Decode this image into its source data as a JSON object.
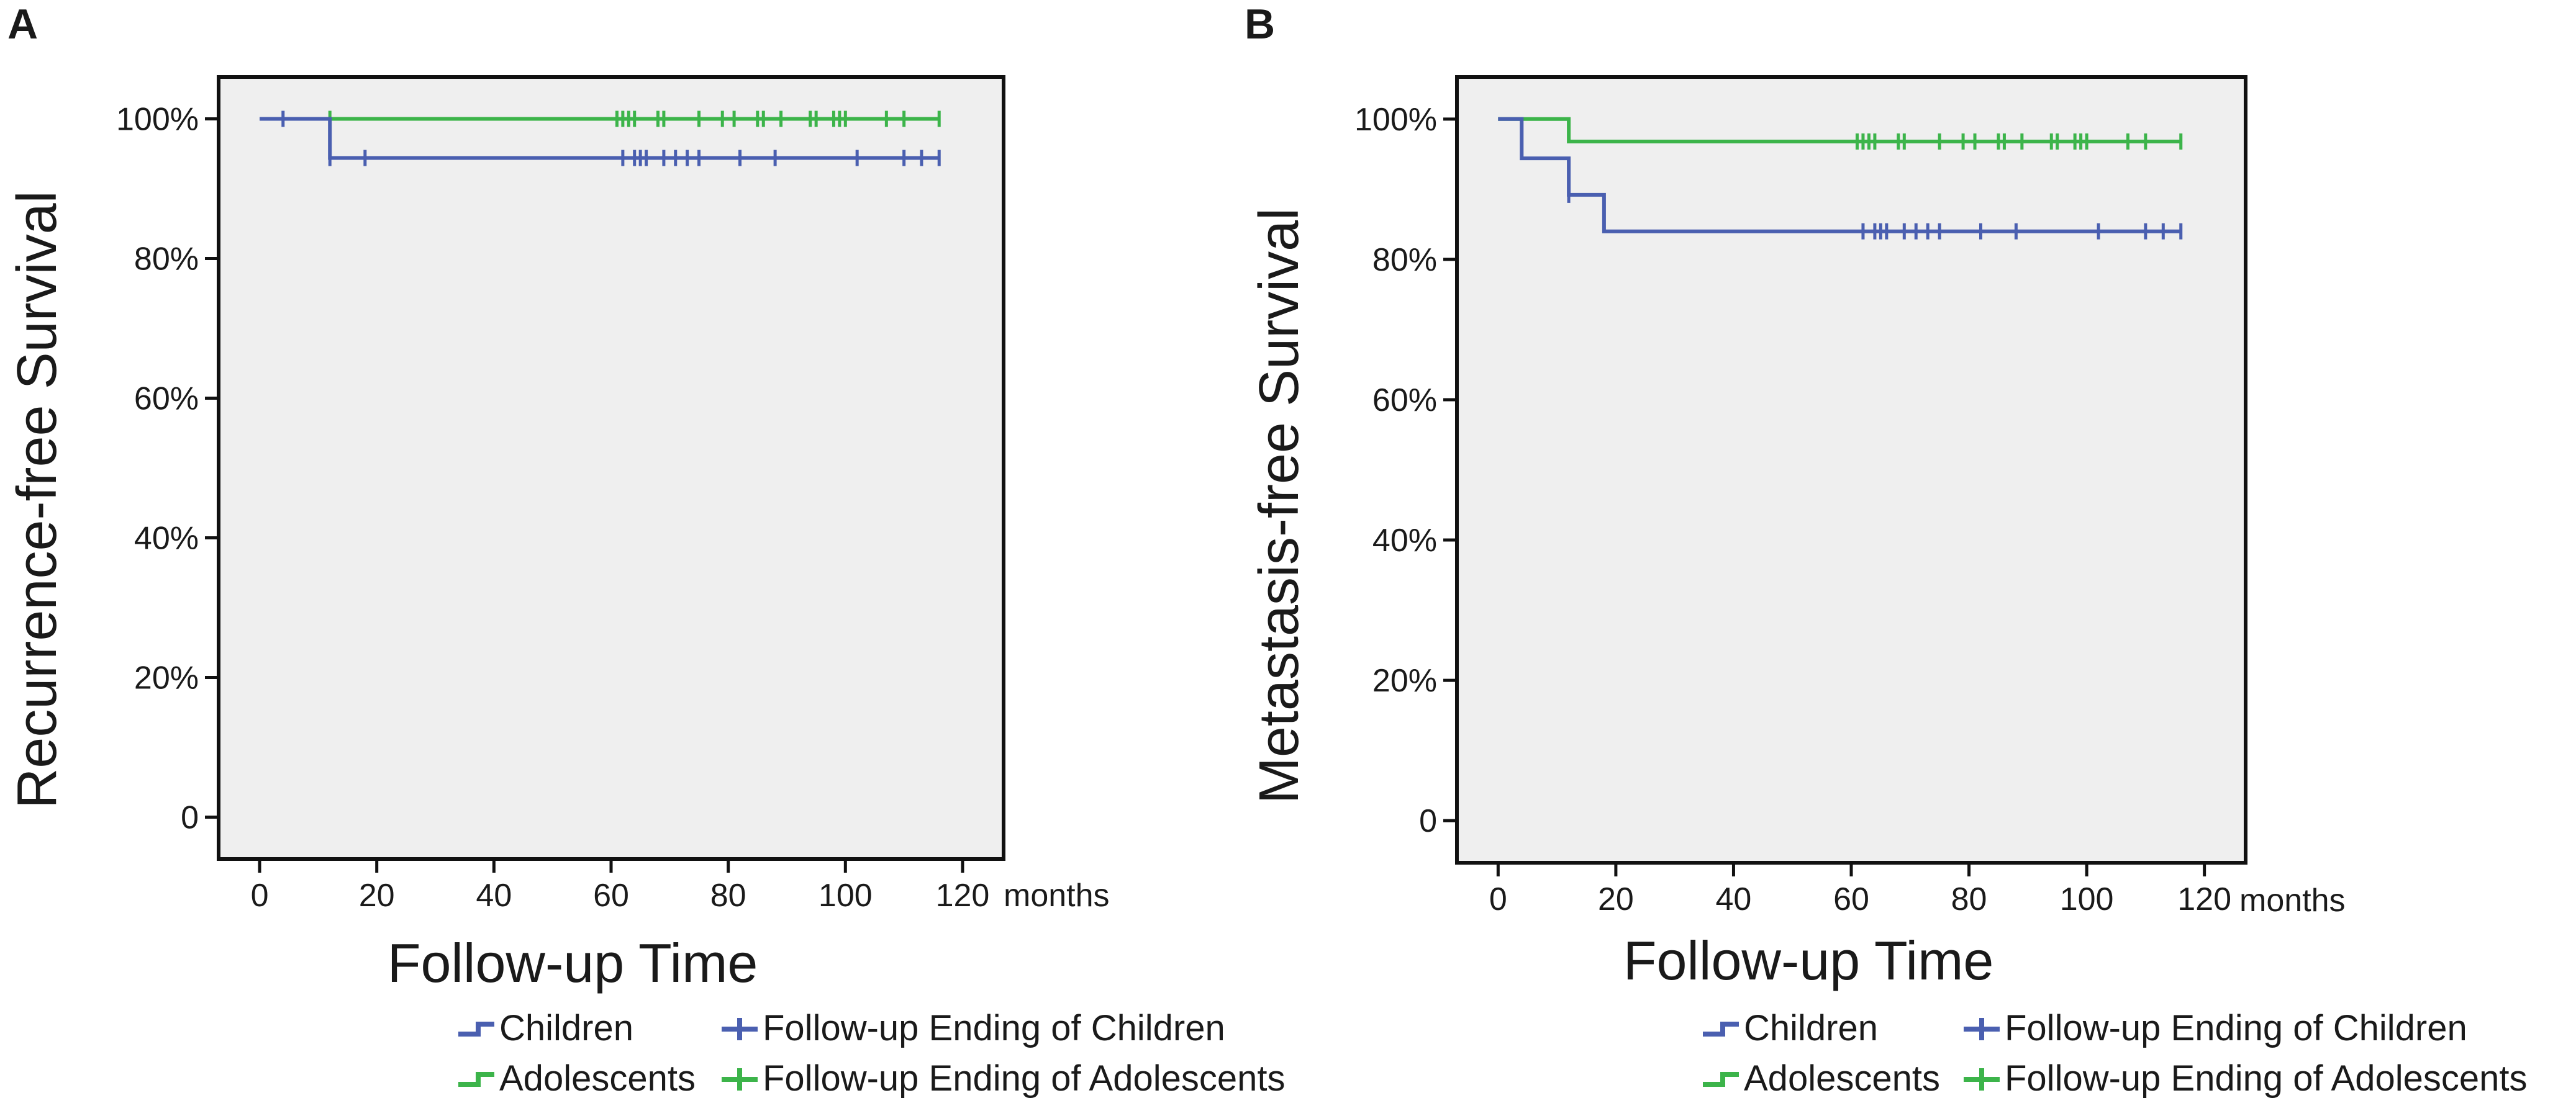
{
  "colors": {
    "children": "#4a5fb0",
    "adolescents": "#3cb44a",
    "plot_background": "#efefef",
    "axis": "#111111"
  },
  "chart_data": [
    {
      "panel": "A",
      "type": "line",
      "subtype": "kaplan-meier-step",
      "xlabel": "Follow-up Time",
      "x_unit_label": "months",
      "ylabel": "Recurrence-free Survival",
      "xlim": [
        -7,
        127
      ],
      "ylim": [
        -6,
        106
      ],
      "x_ticks": [
        0,
        20,
        40,
        60,
        80,
        100,
        120
      ],
      "y_ticks": [
        0,
        20,
        40,
        60,
        80,
        100
      ],
      "y_tick_labels": [
        "0",
        "20%",
        "40%",
        "60%",
        "80%",
        "100%"
      ],
      "grid": false,
      "series": [
        {
          "name": "Children",
          "color_key": "children",
          "steps": [
            [
              0,
              100
            ],
            [
              12,
              100
            ],
            [
              12,
              94.4
            ],
            [
              116,
              94.4
            ]
          ],
          "censored": [
            [
              4,
              100
            ],
            [
              12,
              94.4
            ],
            [
              18,
              94.4
            ],
            [
              62,
              94.4
            ],
            [
              64,
              94.4
            ],
            [
              65,
              94.4
            ],
            [
              66,
              94.4
            ],
            [
              69,
              94.4
            ],
            [
              71,
              94.4
            ],
            [
              73,
              94.4
            ],
            [
              75,
              94.4
            ],
            [
              82,
              94.4
            ],
            [
              88,
              94.4
            ],
            [
              102,
              94.4
            ],
            [
              110,
              94.4
            ],
            [
              113,
              94.4
            ],
            [
              116,
              94.4
            ]
          ]
        },
        {
          "name": "Adolescents",
          "color_key": "adolescents",
          "steps": [
            [
              0,
              100
            ],
            [
              116,
              100
            ]
          ],
          "censored": [
            [
              12,
              100
            ],
            [
              61,
              100
            ],
            [
              62,
              100
            ],
            [
              63,
              100
            ],
            [
              64,
              100
            ],
            [
              68,
              100
            ],
            [
              69,
              100
            ],
            [
              75,
              100
            ],
            [
              79,
              100
            ],
            [
              81,
              100
            ],
            [
              85,
              100
            ],
            [
              86,
              100
            ],
            [
              89,
              100
            ],
            [
              94,
              100
            ],
            [
              95,
              100
            ],
            [
              98,
              100
            ],
            [
              99,
              100
            ],
            [
              100,
              100
            ],
            [
              107,
              100
            ],
            [
              110,
              100
            ],
            [
              116,
              100
            ]
          ]
        }
      ],
      "legend": [
        {
          "label": "Children",
          "marker": "step",
          "color_key": "children"
        },
        {
          "label": "Follow-up Ending of Children",
          "marker": "plus",
          "color_key": "children"
        },
        {
          "label": "Adolescents",
          "marker": "step",
          "color_key": "adolescents"
        },
        {
          "label": "Follow-up Ending of Adolescents",
          "marker": "plus",
          "color_key": "adolescents"
        }
      ]
    },
    {
      "panel": "B",
      "type": "line",
      "subtype": "kaplan-meier-step",
      "xlabel": "Follow-up Time",
      "x_unit_label": "months",
      "ylabel": "Metastasis-free Survival",
      "xlim": [
        -7,
        127
      ],
      "ylim": [
        -6,
        106
      ],
      "x_ticks": [
        0,
        20,
        40,
        60,
        80,
        100,
        120
      ],
      "y_ticks": [
        0,
        20,
        40,
        60,
        80,
        100
      ],
      "y_tick_labels": [
        "0",
        "20%",
        "40%",
        "60%",
        "80%",
        "100%"
      ],
      "grid": false,
      "series": [
        {
          "name": "Children",
          "color_key": "children",
          "steps": [
            [
              0,
              100
            ],
            [
              4,
              100
            ],
            [
              4,
              94.4
            ],
            [
              12,
              94.4
            ],
            [
              12,
              89.2
            ],
            [
              18,
              89.2
            ],
            [
              18,
              84
            ],
            [
              116,
              84
            ]
          ],
          "censored": [
            [
              12,
              89.2
            ],
            [
              62,
              84
            ],
            [
              64,
              84
            ],
            [
              65,
              84
            ],
            [
              66,
              84
            ],
            [
              69,
              84
            ],
            [
              71,
              84
            ],
            [
              73,
              84
            ],
            [
              75,
              84
            ],
            [
              82,
              84
            ],
            [
              88,
              84
            ],
            [
              102,
              84
            ],
            [
              110,
              84
            ],
            [
              113,
              84
            ],
            [
              116,
              84
            ]
          ]
        },
        {
          "name": "Adolescents",
          "color_key": "adolescents",
          "steps": [
            [
              0,
              100
            ],
            [
              12,
              100
            ],
            [
              12,
              96.8
            ],
            [
              116,
              96.8
            ]
          ],
          "censored": [
            [
              61,
              96.8
            ],
            [
              62,
              96.8
            ],
            [
              63,
              96.8
            ],
            [
              64,
              96.8
            ],
            [
              68,
              96.8
            ],
            [
              69,
              96.8
            ],
            [
              75,
              96.8
            ],
            [
              79,
              96.8
            ],
            [
              81,
              96.8
            ],
            [
              85,
              96.8
            ],
            [
              86,
              96.8
            ],
            [
              89,
              96.8
            ],
            [
              94,
              96.8
            ],
            [
              95,
              96.8
            ],
            [
              98,
              96.8
            ],
            [
              99,
              96.8
            ],
            [
              100,
              96.8
            ],
            [
              107,
              96.8
            ],
            [
              110,
              96.8
            ],
            [
              116,
              96.8
            ]
          ]
        }
      ],
      "legend": [
        {
          "label": "Children",
          "marker": "step",
          "color_key": "children"
        },
        {
          "label": "Follow-up Ending of Children",
          "marker": "plus",
          "color_key": "children"
        },
        {
          "label": "Adolescents",
          "marker": "step",
          "color_key": "adolescents"
        },
        {
          "label": "Follow-up Ending of Adolescents",
          "marker": "plus",
          "color_key": "adolescents"
        }
      ]
    }
  ]
}
